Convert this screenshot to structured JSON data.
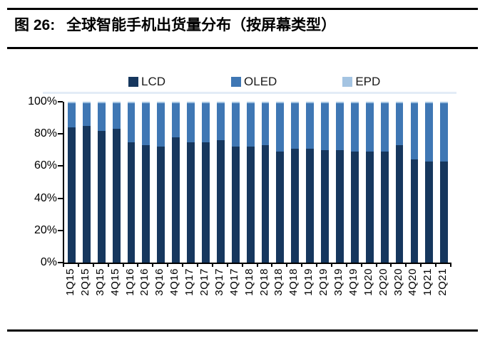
{
  "figure": {
    "label": "图 26:",
    "title": "全球智能手机出货量分布（按屏幕类型）"
  },
  "chart_data": {
    "type": "bar",
    "stacked": true,
    "title": "全球智能手机出货量分布（按屏幕类型）",
    "xlabel": "",
    "ylabel": "",
    "ylim": [
      0,
      100
    ],
    "grid": false,
    "legend_position": "top",
    "yticks": [
      "0%",
      "20%",
      "40%",
      "60%",
      "80%",
      "100%"
    ],
    "categories": [
      "1Q15",
      "2Q15",
      "3Q15",
      "4Q15",
      "1Q16",
      "2Q16",
      "3Q16",
      "4Q16",
      "1Q17",
      "2Q17",
      "3Q17",
      "4Q17",
      "1Q18",
      "2Q18",
      "3Q18",
      "4Q18",
      "1Q19",
      "2Q19",
      "3Q19",
      "4Q19",
      "1Q20",
      "2Q20",
      "3Q20",
      "4Q20",
      "1Q21",
      "2Q21"
    ],
    "series": [
      {
        "name": "LCD",
        "color": "#16375e",
        "values": [
          84,
          85,
          82,
          83,
          75,
          73,
          72,
          78,
          75,
          75,
          76,
          72,
          72,
          73,
          69,
          71,
          71,
          70,
          70,
          69,
          69,
          69,
          73,
          64,
          63,
          63
        ]
      },
      {
        "name": "OLED",
        "color": "#3f77b4",
        "values": [
          15,
          14,
          17,
          16,
          24,
          26,
          27,
          21,
          24,
          24,
          23,
          27,
          27,
          26,
          30,
          28,
          28,
          29,
          29,
          30,
          30,
          30,
          26,
          35,
          36,
          36
        ]
      },
      {
        "name": "EPD",
        "color": "#a4c4e2",
        "values": [
          1,
          1,
          1,
          1,
          1,
          1,
          1,
          1,
          1,
          1,
          1,
          1,
          1,
          1,
          1,
          1,
          1,
          1,
          1,
          1,
          1,
          1,
          1,
          1,
          1,
          1
        ]
      }
    ]
  }
}
